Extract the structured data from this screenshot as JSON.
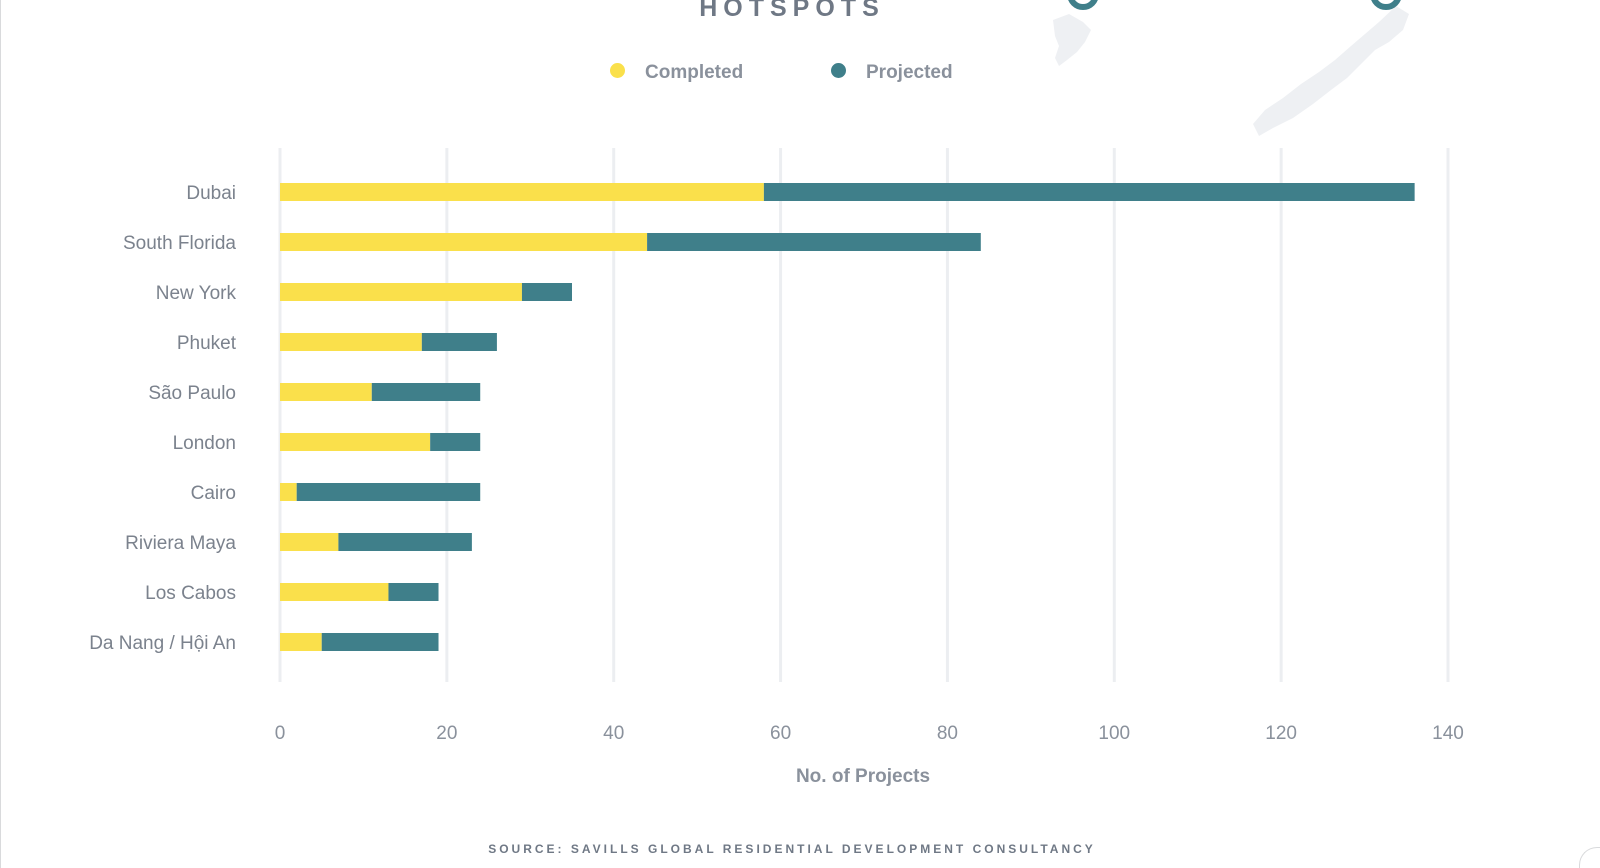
{
  "title": "HOTSPOTS",
  "source": "SOURCE: SAVILLS GLOBAL RESIDENTIAL DEVELOPMENT CONSULTANCY",
  "colors": {
    "completed": "#fae04b",
    "projected": "#3f7f8a",
    "grid": "#eceef1",
    "text": "#7b828d"
  },
  "chart_data": {
    "type": "bar",
    "orientation": "horizontal",
    "stacked": true,
    "categories": [
      "Dubai",
      "South Florida",
      "New York",
      "Phuket",
      "São Paulo",
      "London",
      "Cairo",
      "Riviera Maya",
      "Los Cabos",
      "Da Nang / Hội An"
    ],
    "series": [
      {
        "name": "Completed",
        "values": [
          58,
          44,
          29,
          17,
          11,
          18,
          2,
          7,
          13,
          5
        ]
      },
      {
        "name": "Projected",
        "values": [
          78,
          40,
          6,
          9,
          13,
          6,
          22,
          16,
          6,
          14
        ]
      }
    ],
    "xlabel": "No. of Projects",
    "ylabel": "",
    "xlim": [
      0,
      140
    ],
    "xticks": [
      0,
      20,
      40,
      60,
      80,
      100,
      120,
      140
    ],
    "grid": true,
    "legend": "top-center"
  }
}
